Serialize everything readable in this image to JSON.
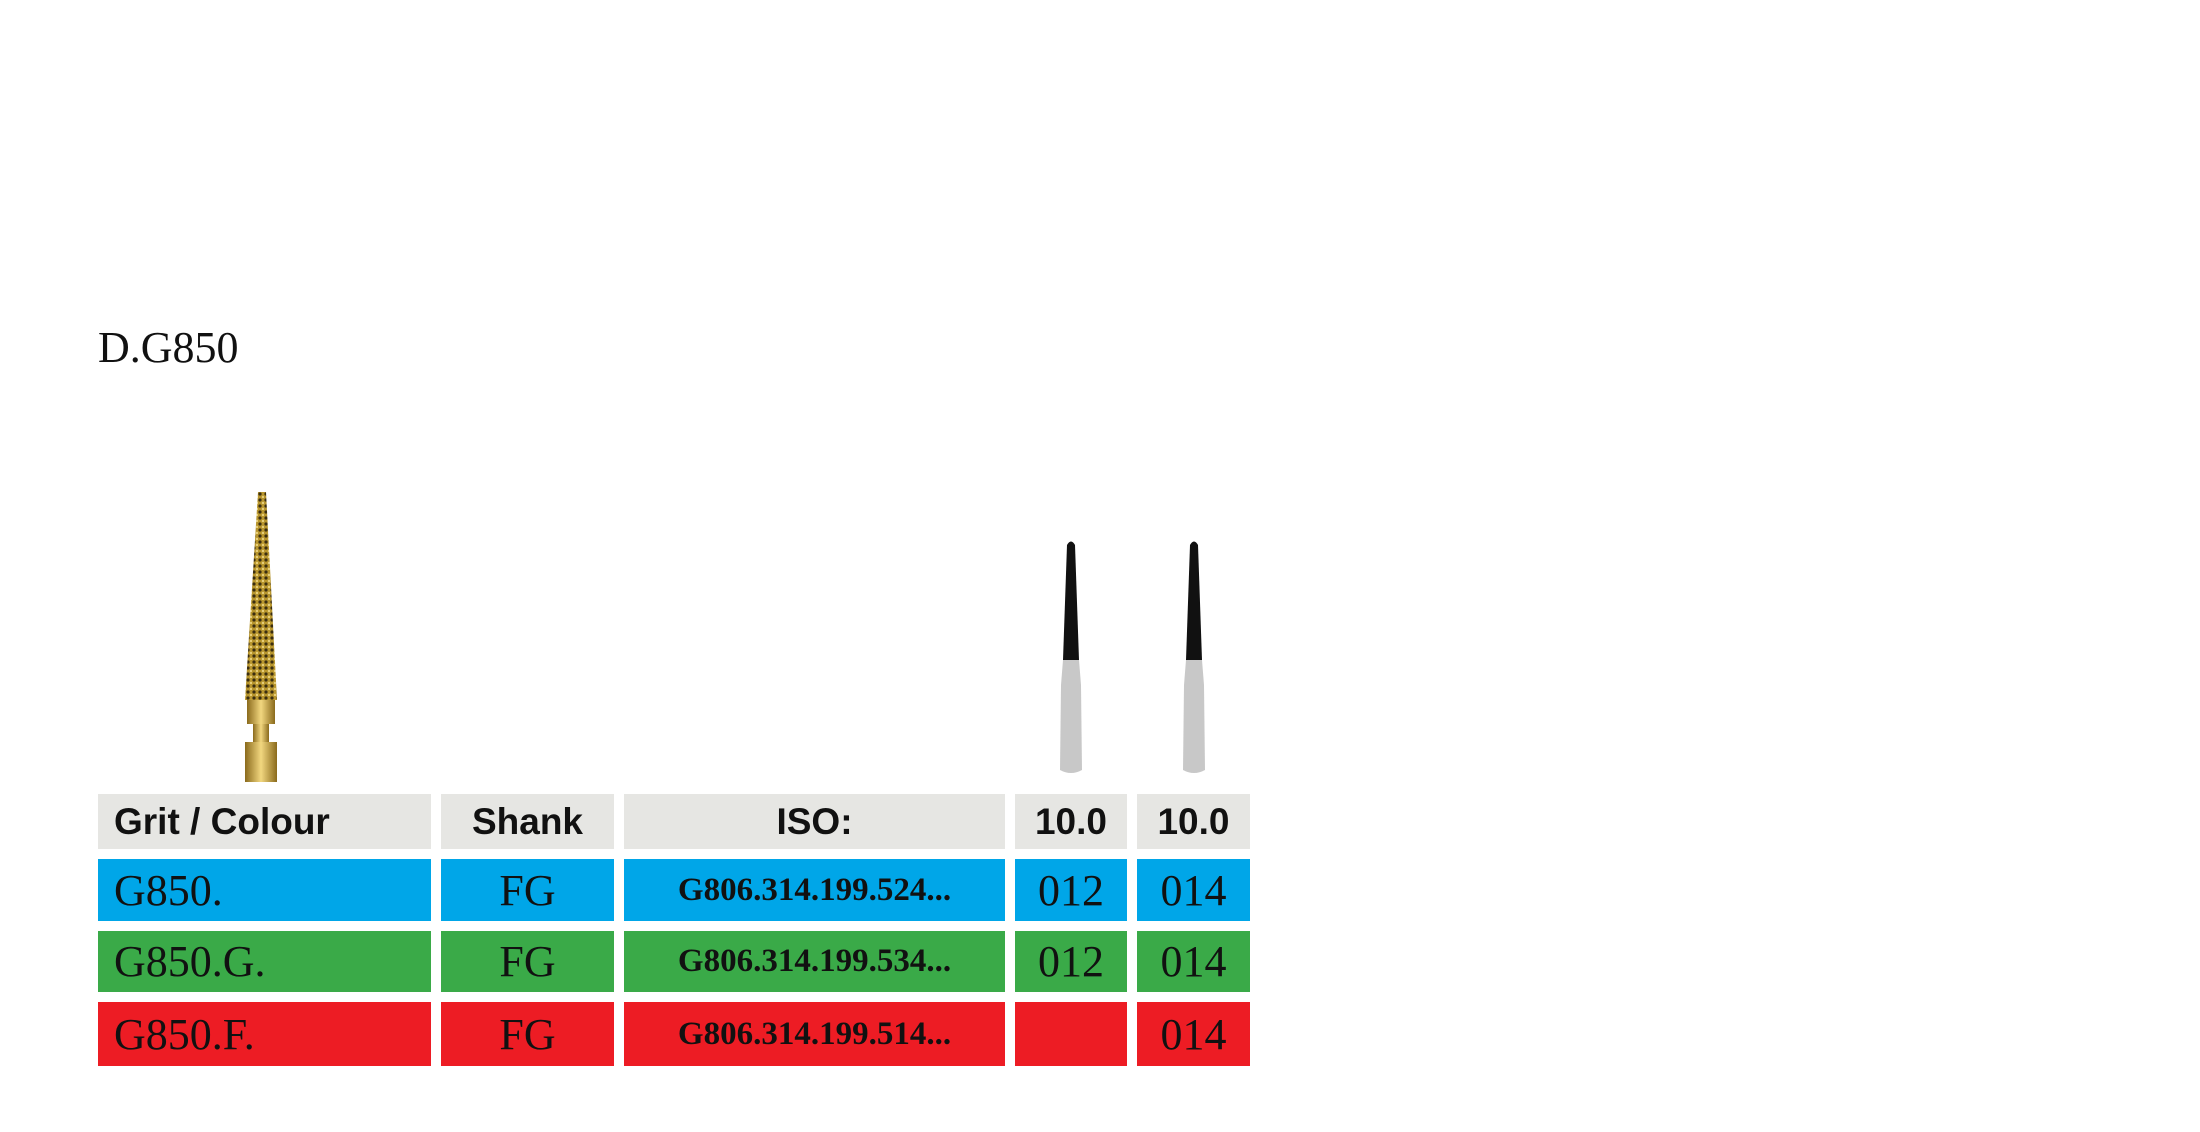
{
  "title": "D.G850",
  "table": {
    "header": [
      "Grit / Colour",
      "Shank",
      "ISO:",
      "10.0",
      "10.0"
    ],
    "rows": [
      [
        "G850.",
        "FG",
        "G806.314.199.524...",
        "012",
        "014"
      ],
      [
        "G850.G.",
        "FG",
        "G806.314.199.534...",
        "012",
        "014"
      ],
      [
        "G850.F.",
        "FG",
        "G806.314.199.514...",
        null,
        "014"
      ]
    ]
  }
}
